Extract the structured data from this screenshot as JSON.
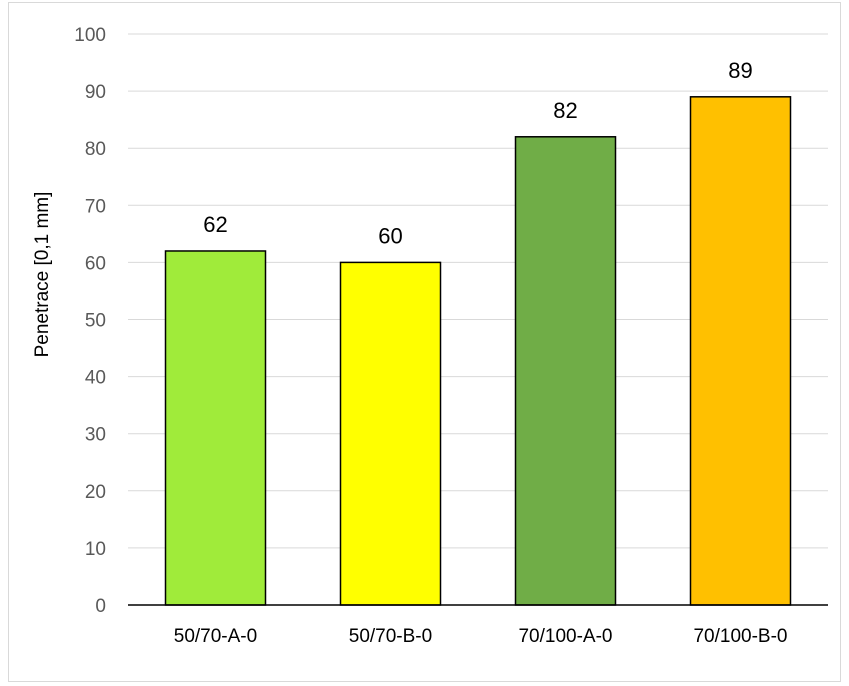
{
  "chart_data": {
    "type": "bar",
    "categories": [
      "50/70-A-0",
      "50/70-B-0",
      "70/100-A-0",
      "70/100-B-0"
    ],
    "values": [
      62,
      60,
      82,
      89
    ],
    "colors": [
      "#a0eb3a",
      "#ffff00",
      "#70ad47",
      "#ffc000"
    ],
    "title": "",
    "xlabel": "",
    "ylabel": "Penetrace [0,1 mm]",
    "ylim": [
      0,
      100
    ],
    "yticks": [
      0,
      10,
      20,
      30,
      40,
      50,
      60,
      70,
      80,
      90,
      100
    ],
    "grid": true,
    "data_labels": true,
    "legend": "none"
  }
}
